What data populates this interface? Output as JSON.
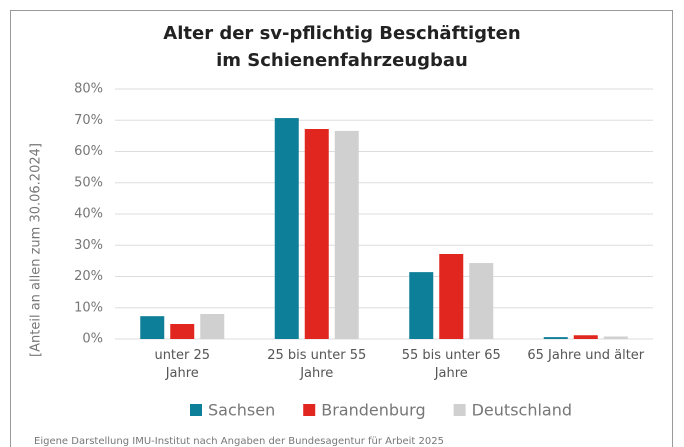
{
  "chart_data": {
    "type": "bar",
    "title": "Alter der sv-pflichtig Beschäftigten im Schienenfahrzeugbau",
    "y_label": "[Anteil an allen zum 30.06.2024]",
    "source": "Eigene Darstellung IMU-Institut nach Angaben der Bundesagentur für Arbeit 2025",
    "categories": [
      "unter 25\nJahre",
      "25 bis unter 55\nJahre",
      "55 bis unter 65\nJahre",
      "65 Jahre und älter"
    ],
    "series": [
      {
        "name": "Sachsen",
        "color": "#0e7f98",
        "values": [
          7.3,
          70.7,
          21.4,
          0.6
        ]
      },
      {
        "name": "Brandenburg",
        "color": "#e0261f",
        "values": [
          4.8,
          67.2,
          27.2,
          1.2
        ]
      },
      {
        "name": "Deutschland",
        "color": "#d0d0d0",
        "values": [
          8.0,
          66.6,
          24.3,
          0.8
        ]
      }
    ],
    "ylim": [
      0,
      80
    ],
    "yticks": [
      {
        "value": 0,
        "label": "0%"
      },
      {
        "value": 10,
        "label": "10%"
      },
      {
        "value": 20,
        "label": "20%"
      },
      {
        "value": 30,
        "label": "30%"
      },
      {
        "value": 40,
        "label": "40%"
      },
      {
        "value": 50,
        "label": "50%"
      },
      {
        "value": 60,
        "label": "60%"
      },
      {
        "value": 70,
        "label": "70%"
      },
      {
        "value": 80,
        "label": "80%"
      }
    ],
    "grid": true,
    "legend": "bottom"
  }
}
